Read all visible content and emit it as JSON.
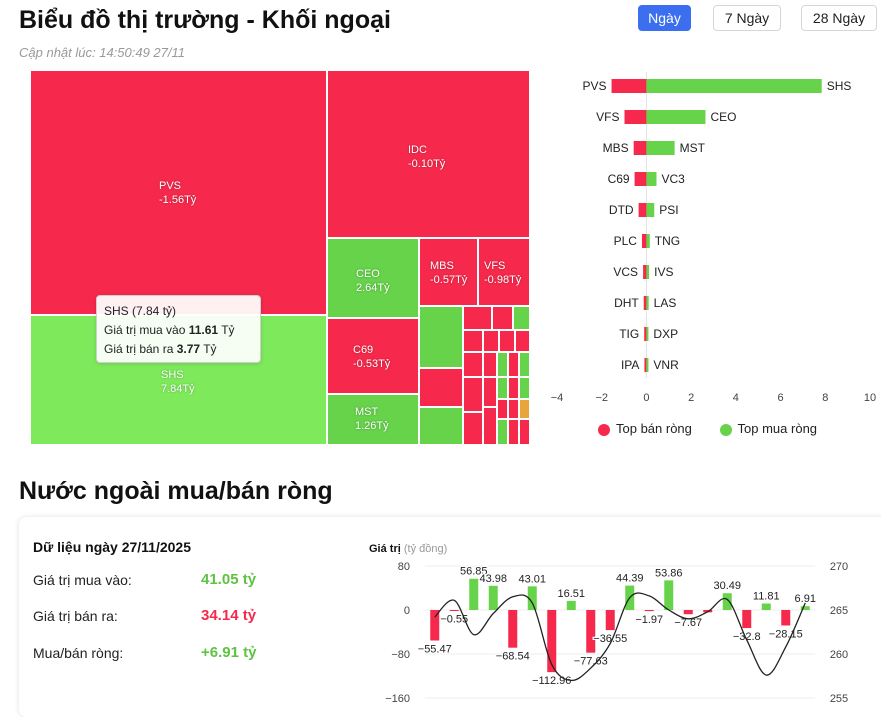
{
  "header": {
    "title": "Biểu đồ thị trường - Khối ngoại",
    "updated": "Cập nhật lúc: 14:50:49 27/11",
    "ranges": [
      "Ngày",
      "7 Ngày",
      "28 Ngày"
    ],
    "active_range": "Ngày"
  },
  "treemap": {
    "tiles": [
      {
        "name": "PVS",
        "value": "-1.56Tỷ"
      },
      {
        "name": "SHS",
        "value": "7.84Tỷ"
      },
      {
        "name": "IDC",
        "value": "-0.10Tỷ"
      },
      {
        "name": "CEO",
        "value": "2.64Tỷ"
      },
      {
        "name": "MBS",
        "value": "-0.57Tỷ"
      },
      {
        "name": "VFS",
        "value": "-0.98Tỷ"
      },
      {
        "name": "C69",
        "value": "-0.53Tỷ"
      },
      {
        "name": "MST",
        "value": "1.26Tỷ"
      }
    ],
    "tooltip": {
      "title": "SHS (7.84 tỷ)",
      "buy_label": "Giá trị mua vào",
      "buy_value": "11.61",
      "buy_unit": "Tỷ",
      "sell_label": "Giá trị bán ra",
      "sell_value": "3.77",
      "sell_unit": "Tỷ"
    }
  },
  "top_chart": {
    "rows": [
      {
        "sell": "PVS",
        "sell_val": -1.56,
        "buy": "SHS",
        "buy_val": 7.84
      },
      {
        "sell": "VFS",
        "sell_val": -0.98,
        "buy": "CEO",
        "buy_val": 2.64
      },
      {
        "sell": "MBS",
        "sell_val": -0.57,
        "buy": "MST",
        "buy_val": 1.26
      },
      {
        "sell": "C69",
        "sell_val": -0.53,
        "buy": "VC3",
        "buy_val": 0.45
      },
      {
        "sell": "DTD",
        "sell_val": -0.35,
        "buy": "PSI",
        "buy_val": 0.35
      },
      {
        "sell": "PLC",
        "sell_val": -0.2,
        "buy": "TNG",
        "buy_val": 0.15
      },
      {
        "sell": "VCS",
        "sell_val": -0.15,
        "buy": "IVS",
        "buy_val": 0.12
      },
      {
        "sell": "DHT",
        "sell_val": -0.12,
        "buy": "LAS",
        "buy_val": 0.1
      },
      {
        "sell": "TIG",
        "sell_val": -0.1,
        "buy": "DXP",
        "buy_val": 0.08
      },
      {
        "sell": "IPA",
        "sell_val": -0.08,
        "buy": "VNR",
        "buy_val": 0.06
      }
    ],
    "x_ticks": [
      -4,
      -2,
      0,
      2,
      4,
      6,
      8,
      10
    ],
    "xlim": [
      -4,
      10
    ],
    "legend": {
      "sell": "Top bán ròng",
      "buy": "Top mua ròng"
    },
    "colors": {
      "sell": "#f6294c",
      "buy": "#66d34a"
    }
  },
  "flow": {
    "title": "Nước ngoài mua/bán ròng",
    "date_label": "Dữ liệu ngày 27/11/2025",
    "buy_label": "Giá trị mua vào:",
    "buy_value": "41.05 tỷ",
    "sell_label": "Giá trị bán ra:",
    "sell_value": "34.14 tỷ",
    "net_label": "Mua/bán ròng:",
    "net_value": "+6.91 tỷ"
  },
  "chart_data": {
    "type": "bar",
    "title": "",
    "ylabel": "Giá trị",
    "ylabel_unit": "(tỷ đồng)",
    "y_ticks": [
      80,
      0,
      -80,
      -160
    ],
    "ylim": [
      -160,
      80
    ],
    "y2_ticks": [
      270,
      265,
      260,
      255
    ],
    "y2lim": [
      255,
      270
    ],
    "values": [
      -55.47,
      -0.55,
      56.85,
      43.98,
      -68.54,
      43.01,
      -112.96,
      16.51,
      -77.63,
      -36.55,
      44.39,
      -1.97,
      53.86,
      -7.67,
      -4.2,
      30.49,
      -32.8,
      11.81,
      -28.15,
      6.91
    ],
    "labeled": [
      true,
      true,
      true,
      true,
      true,
      true,
      true,
      true,
      true,
      true,
      true,
      true,
      true,
      true,
      false,
      true,
      true,
      true,
      true,
      true
    ],
    "line": [
      264.2,
      266.1,
      262.2,
      264.6,
      266.5,
      265.8,
      258.8,
      257.0,
      258.4,
      261.2,
      266.4,
      266.6,
      265.0,
      264.0,
      264.8,
      266.2,
      261.6,
      257.6,
      260.8,
      265.8
    ],
    "colors": {
      "up": "#66d34a",
      "down": "#f6294c",
      "line": "#222222"
    }
  }
}
